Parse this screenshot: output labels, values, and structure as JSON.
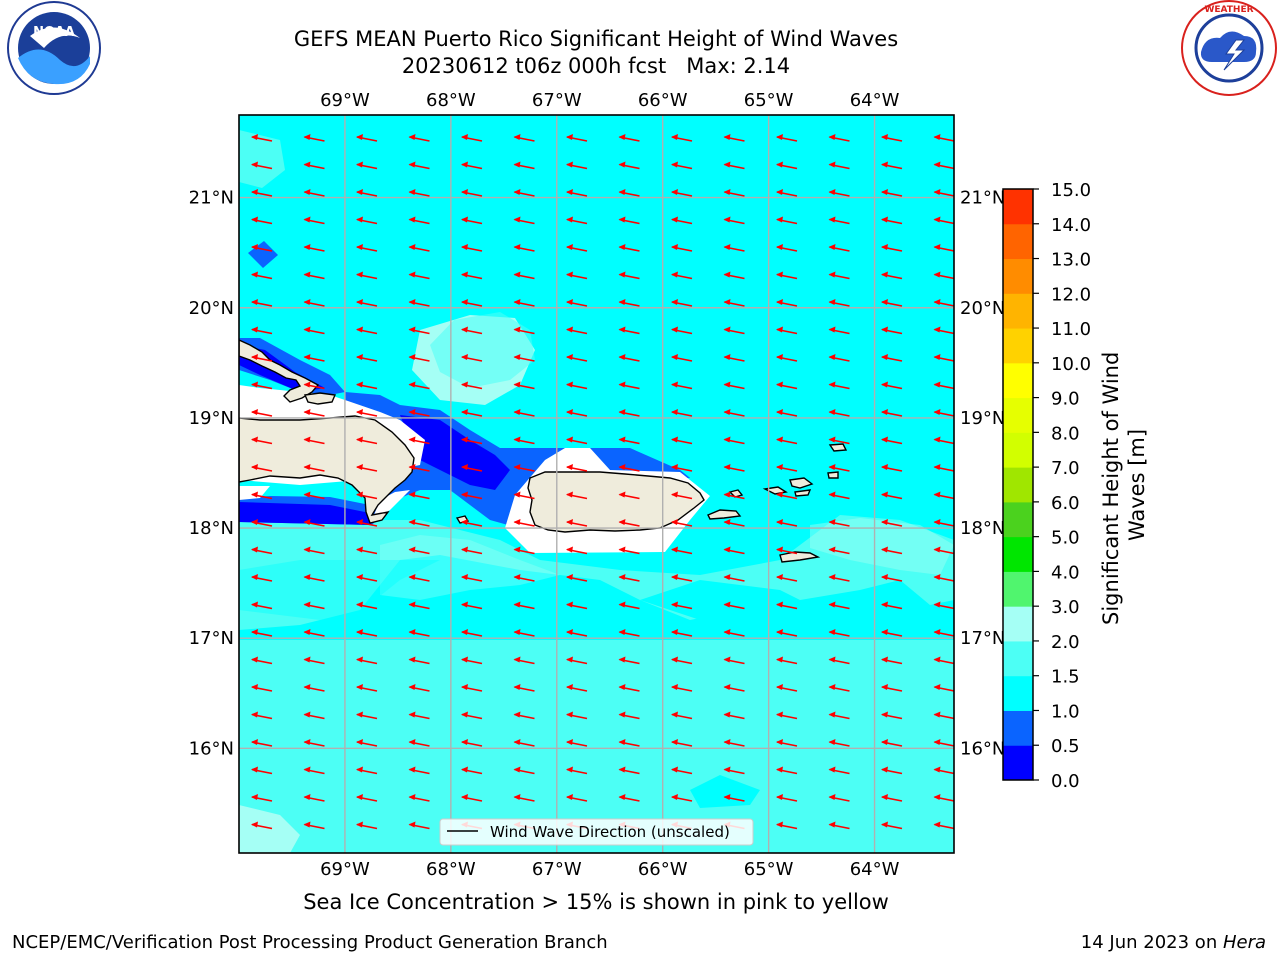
{
  "title": {
    "line1": "GEFS MEAN Puerto Rico Significant Height of Wind Waves",
    "line2": "20230612 t06z 000h fcst   Max: 2.14"
  },
  "logos": {
    "left": {
      "name": "NOAA",
      "icon": "noaa-logo",
      "ring_text": "NATIONAL OCEANIC AND ATMOSPHERIC ADMINISTRATION",
      "bottom_text": "U.S. DEPARTMENT OF COMMERCE"
    },
    "right": {
      "name": "NATIONAL WEATHER SERVICE",
      "icon": "nws-logo"
    }
  },
  "map": {
    "lon_range": [
      -70.0,
      -63.25
    ],
    "lat_range": [
      15.05,
      21.75
    ],
    "lon_ticks": [
      {
        "value": -69,
        "label": "69°W"
      },
      {
        "value": -68,
        "label": "68°W"
      },
      {
        "value": -67,
        "label": "67°W"
      },
      {
        "value": -66,
        "label": "66°W"
      },
      {
        "value": -65,
        "label": "65°W"
      },
      {
        "value": -64,
        "label": "64°W"
      }
    ],
    "lat_ticks": [
      {
        "value": 21,
        "label": "21°N"
      },
      {
        "value": 20,
        "label": "20°N"
      },
      {
        "value": 19,
        "label": "19°N"
      },
      {
        "value": 18,
        "label": "18°N"
      },
      {
        "value": 17,
        "label": "17°N"
      },
      {
        "value": 16,
        "label": "16°N"
      }
    ],
    "gridlines": true,
    "background_color": "#00ffff",
    "land_color": "#efecdc",
    "arrow_color": "#ff0000",
    "legend": {
      "label": "Wind Wave Direction (unscaled)",
      "placement": "lower-center"
    }
  },
  "colorbar": {
    "label": "Significant Height of Wind Waves [m]",
    "levels": [
      {
        "value": "0.0",
        "color": "#0000ff"
      },
      {
        "value": "0.5",
        "color": "#0a64ff"
      },
      {
        "value": "1.0",
        "color": "#00ffff"
      },
      {
        "value": "1.5",
        "color": "#4cfff5"
      },
      {
        "value": "2.0",
        "color": "#a5fff5"
      },
      {
        "value": "3.0",
        "color": "#50f56e"
      },
      {
        "value": "4.0",
        "color": "#00e600"
      },
      {
        "value": "5.0",
        "color": "#4bd21e"
      },
      {
        "value": "6.0",
        "color": "#a0e600"
      },
      {
        "value": "7.0",
        "color": "#d2ff00"
      },
      {
        "value": "8.0",
        "color": "#e6ff00"
      },
      {
        "value": "9.0",
        "color": "#ffff00"
      },
      {
        "value": "10.0",
        "color": "#ffd200"
      },
      {
        "value": "11.0",
        "color": "#ffb400"
      },
      {
        "value": "12.0",
        "color": "#ff8c00"
      },
      {
        "value": "13.0",
        "color": "#ff6400"
      },
      {
        "value": "14.0",
        "color": "#ff3200"
      },
      {
        "value": "15.0",
        "color": "#ff0000"
      }
    ]
  },
  "chart_data": {
    "type": "heatmap",
    "title": "GEFS MEAN Puerto Rico Significant Height of Wind Waves",
    "subtitle": "20230612 t06z 000h fcst   Max: 2.14",
    "variable": "Significant Height of Wind Waves [m]",
    "max": 2.14,
    "xlim": [
      -70.0,
      -63.25
    ],
    "ylim": [
      15.05,
      21.75
    ],
    "dominant_range": [
      1.0,
      1.5
    ],
    "wave_direction": "east to west (arrows pointing west)"
  },
  "notes": {
    "sea_ice": "Sea Ice Concentration > 15% is shown in pink to yellow"
  },
  "footer": {
    "left": "NCEP/EMC/Verification Post Processing Product Generation Branch",
    "right_prefix": "14 Jun 2023 on ",
    "right_host": "Hera"
  }
}
